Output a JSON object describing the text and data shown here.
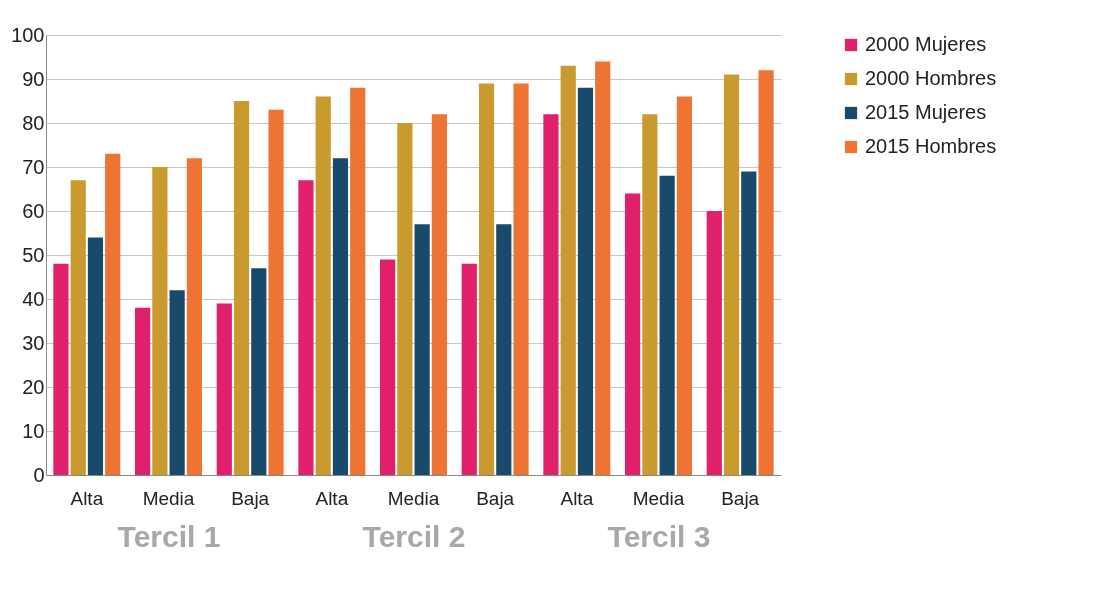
{
  "chart_data": [
    {
      "type": "bar",
      "categories": [
        "Alta",
        "Media",
        "Baja"
      ],
      "xlabel": "Tercil 1",
      "ylim": [
        0,
        100
      ],
      "yticks": [
        0,
        10,
        20,
        30,
        40,
        50,
        60,
        70,
        80,
        90,
        100
      ],
      "grid": "y",
      "series": [
        {
          "color": "#e0206a",
          "values": [
            48,
            38,
            39
          ]
        },
        {
          "color": "#c99a2e",
          "values": [
            67,
            70,
            85
          ]
        },
        {
          "color": "#1a4a6b",
          "values": [
            54,
            42,
            47
          ]
        },
        {
          "color": "#ee7433",
          "values": [
            73,
            72,
            83
          ]
        }
      ]
    },
    {
      "type": "bar",
      "categories": [
        "Alta",
        "Media",
        "Baja"
      ],
      "xlabel": "Tercil 2",
      "ylim": [
        0,
        100
      ],
      "yticks": [
        0,
        10,
        20,
        30,
        40,
        50,
        60,
        70,
        80,
        90,
        100
      ],
      "grid": "y",
      "tick_labels": "x",
      "series": [
        {
          "color": "#e0206a",
          "values": [
            67,
            49,
            48
          ]
        },
        {
          "color": "#c99a2e",
          "values": [
            86,
            80,
            89
          ]
        },
        {
          "color": "#1a4a6b",
          "values": [
            72,
            57,
            57
          ]
        },
        {
          "color": "#ee7433",
          "values": [
            88,
            82,
            89
          ]
        }
      ]
    },
    {
      "type": "bar",
      "categories": [
        "Alta",
        "Media",
        "Baja"
      ],
      "xlabel": "Tercil 3",
      "ylim": [
        0,
        100
      ],
      "yticks": [
        0,
        10,
        20,
        30,
        40,
        50,
        60,
        70,
        80,
        90,
        100
      ],
      "grid": "y",
      "legend": "right",
      "tick_labels": "x",
      "series": [
        {
          "name": "2000 Mujeres",
          "color": "#e0206a",
          "values": [
            82,
            64,
            60
          ]
        },
        {
          "name": "2000 Hombres",
          "color": "#c99a2e",
          "values": [
            93,
            82,
            91
          ]
        },
        {
          "name": "2015 Mujeres",
          "color": "#1a4a6b",
          "values": [
            88,
            68,
            69
          ]
        },
        {
          "name": "2015 Hombres",
          "color": "#ee7433",
          "values": [
            94,
            86,
            92
          ]
        }
      ]
    }
  ]
}
